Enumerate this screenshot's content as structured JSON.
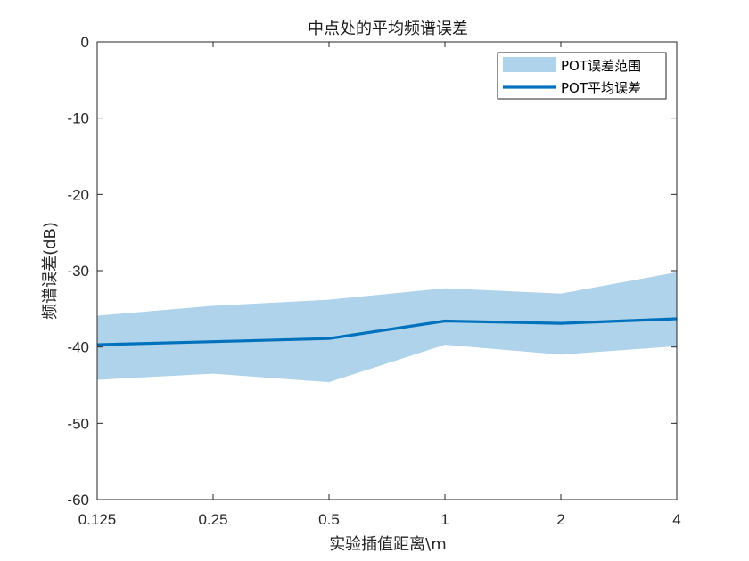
{
  "chart_data": {
    "type": "line",
    "title": "中点处的平均频谱误差",
    "xlabel": "实验插值距离\\m",
    "ylabel": "频谱误差(dB)",
    "x": [
      0.125,
      0.25,
      0.5,
      1,
      2,
      4
    ],
    "x_tick_labels": [
      "0.125",
      "0.25",
      "0.5",
      "1",
      "2",
      "4"
    ],
    "x_scale": "log2",
    "y_ticks": [
      0,
      -10,
      -20,
      -30,
      -40,
      -50,
      -60
    ],
    "y_tick_labels": [
      "0",
      "-10",
      "-20",
      "-30",
      "-40",
      "-50",
      "-60"
    ],
    "ylim": [
      -60,
      0
    ],
    "grid": false,
    "legend_position": "top-right",
    "series": [
      {
        "name": "POT误差范围",
        "kind": "band",
        "upper": [
          -35.9,
          -34.6,
          -33.8,
          -32.3,
          -33.0,
          -30.2
        ],
        "lower": [
          -44.3,
          -43.5,
          -44.6,
          -39.7,
          -41.0,
          -39.9
        ],
        "color": "#aed3ea"
      },
      {
        "name": "POT平均误差",
        "kind": "line",
        "values": [
          -39.7,
          -39.3,
          -38.9,
          -36.6,
          -36.9,
          -36.3
        ],
        "color": "#0072bd"
      }
    ]
  }
}
